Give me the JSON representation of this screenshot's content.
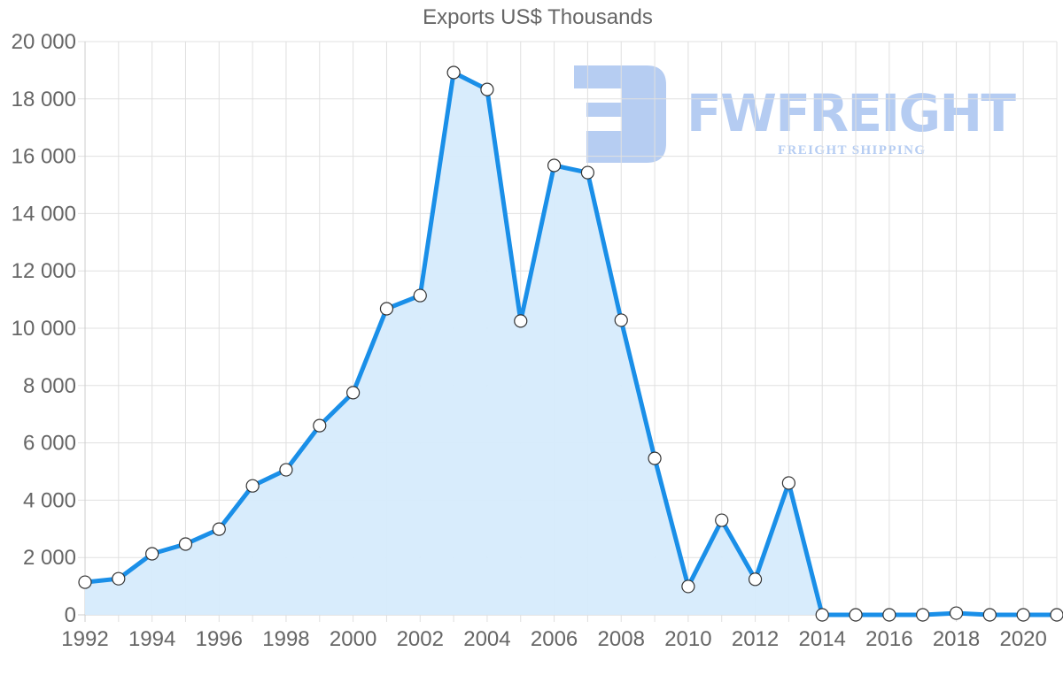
{
  "chart_data": {
    "type": "area",
    "title": "Exports US$ Thousands",
    "xlabel": "",
    "ylabel": "",
    "x": [
      1992,
      1993,
      1994,
      1995,
      1996,
      1997,
      1998,
      1999,
      2000,
      2001,
      2002,
      2003,
      2004,
      2005,
      2006,
      2007,
      2008,
      2009,
      2010,
      2011,
      2012,
      2013,
      2014,
      2015,
      2016,
      2017,
      2018,
      2019,
      2020,
      2021
    ],
    "series": [
      {
        "name": "Exports US$ Thousands",
        "values": [
          1140,
          1260,
          2130,
          2470,
          2990,
          4500,
          5060,
          6600,
          7750,
          10680,
          11140,
          18920,
          18330,
          10250,
          15680,
          15430,
          10280,
          5460,
          990,
          3300,
          1240,
          4600,
          0,
          0,
          0,
          0,
          60,
          0,
          0,
          0
        ]
      }
    ],
    "ylim": [
      0,
      20000
    ],
    "y_ticks": [
      "0",
      "2 000",
      "4 000",
      "6 000",
      "8 000",
      "10 000",
      "12 000",
      "14 000",
      "16 000",
      "18 000",
      "20 000"
    ],
    "x_ticks": [
      "1992",
      "1994",
      "1996",
      "1998",
      "2000",
      "2002",
      "2004",
      "2006",
      "2008",
      "2010",
      "2012",
      "2014",
      "2016",
      "2018",
      "2020"
    ],
    "grid": true,
    "legend": "none",
    "colors": {
      "line": "#1a8fe8",
      "fill": "#d6ebfc",
      "point_fill": "#ffffff",
      "point_stroke": "#333333"
    }
  },
  "watermark": {
    "brand": "FWFREIGHT",
    "tagline": "FREIGHT SHIPPING",
    "color": "#a9c4f0"
  }
}
